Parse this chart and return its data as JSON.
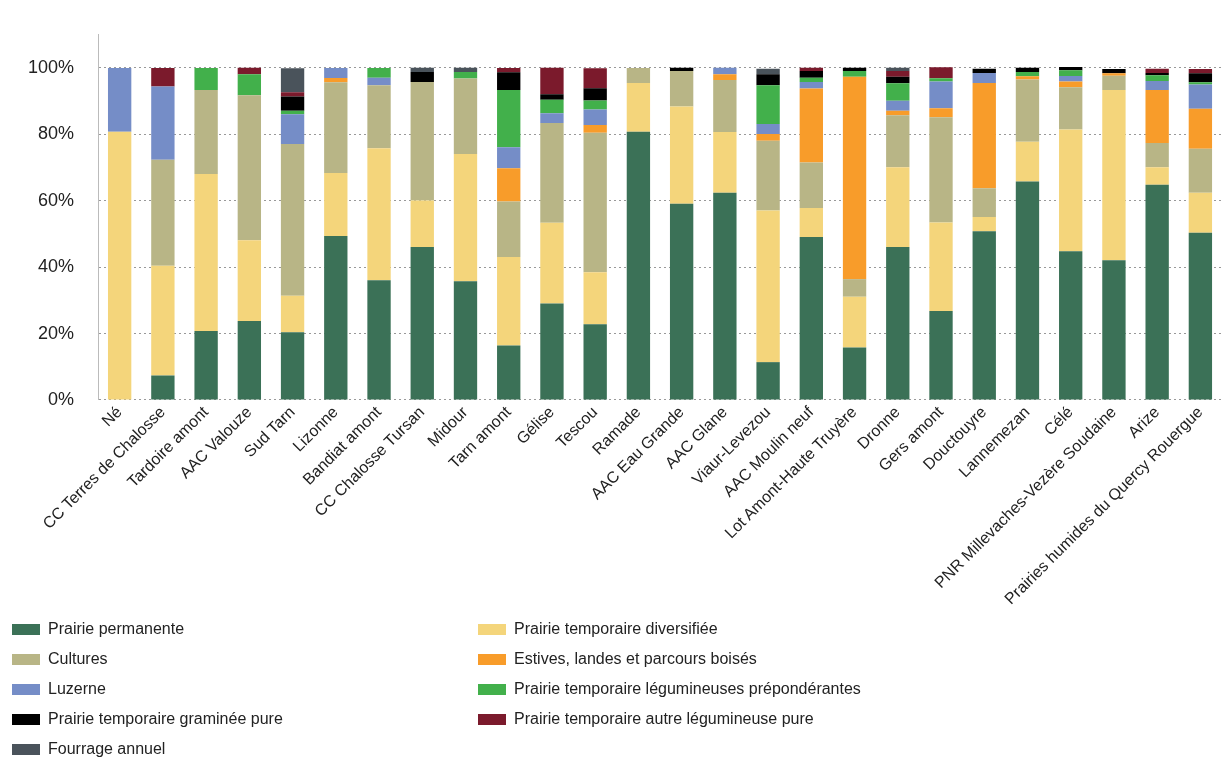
{
  "chart_data": {
    "type": "bar",
    "stacked": true,
    "legend": "bottom",
    "grid": "y",
    "ylim": [
      0,
      110
    ],
    "yticks": [
      {
        "value": 0,
        "label": "0%"
      },
      {
        "value": 20,
        "label": "20%"
      },
      {
        "value": 40,
        "label": "40%"
      },
      {
        "value": 60,
        "label": "60%"
      },
      {
        "value": 80,
        "label": "80%"
      },
      {
        "value": 100,
        "label": "100%"
      }
    ],
    "categories": [
      "Né",
      "CC Terres de Chalosse",
      "Tardoire amont",
      "AAC Valouze",
      "Sud Tarn",
      "Lizonne",
      "Bandiat amont",
      "CC Chalosse Tursan",
      "Midour",
      "Tarn amont",
      "Gélise",
      "Tescou",
      "Ramade",
      "AAC Eau Grande",
      "AAC Glane",
      "Viaur-Levezou",
      "AAC Moulin neuf",
      "Lot Amont-Haute Truyère",
      "Dronne",
      "Gers amont",
      "Douctouyre",
      "Lannemezan",
      "Célé",
      "PNR Millevaches-Vezère Soudaine",
      "Arize",
      "Prairies humides du Quercy Rouergue"
    ],
    "series": [
      {
        "name": "Prairie permanente",
        "color": "#3b7157",
        "values": [
          0,
          7.4,
          20.8,
          23.8,
          20.4,
          49.4,
          36.1,
          46.1,
          35.8,
          16.4,
          29.1,
          22.8,
          80.8,
          59.1,
          62.4,
          11.4,
          49.1,
          15.8,
          46.1,
          26.8,
          50.8,
          65.8,
          44.8,
          42.1,
          64.8,
          50.4
        ]
      },
      {
        "name": "Prairie temporaire diversifiée",
        "color": "#f4d57b",
        "values": [
          80.8,
          33.0,
          47.3,
          24.3,
          11.0,
          19.0,
          39.7,
          14.0,
          38.3,
          26.7,
          24.3,
          15.7,
          14.7,
          29.3,
          18.3,
          45.7,
          8.7,
          15.3,
          24.0,
          26.7,
          4.3,
          12.0,
          36.7,
          51.3,
          5.3,
          12.0
        ]
      },
      {
        "name": "Cultures",
        "color": "#b8b586",
        "values": [
          0,
          32.0,
          25.3,
          43.7,
          45.7,
          27.3,
          19.0,
          35.7,
          22.7,
          16.7,
          30.0,
          42.0,
          4.5,
          10.7,
          15.7,
          21.0,
          13.7,
          5.3,
          15.7,
          31.7,
          8.7,
          18.7,
          12.7,
          4.3,
          7.3,
          13.3
        ]
      },
      {
        "name": "Estives, landes et parcours boisés",
        "color": "#f89c2a",
        "values": [
          0,
          0,
          0,
          0,
          0,
          1.3,
          0,
          0,
          0,
          10.0,
          0,
          2.3,
          0,
          0,
          1.7,
          2.0,
          22.3,
          61.0,
          1.3,
          2.7,
          31.7,
          1.0,
          1.7,
          0.7,
          16.0,
          12.0
        ]
      },
      {
        "name": "Luzerne",
        "color": "#758dc7",
        "values": [
          19.2,
          22.0,
          0,
          0,
          9.0,
          3.0,
          2.3,
          0,
          0,
          6.3,
          3.0,
          4.7,
          0,
          0,
          2.0,
          3.0,
          2.0,
          0,
          3.0,
          8.0,
          3.0,
          0,
          1.7,
          0,
          2.7,
          7.3
        ]
      },
      {
        "name": "Prairie temporaire légumineuses prépondérantes",
        "color": "#42b04b",
        "values": [
          0,
          0,
          6.6,
          6.3,
          1.0,
          0,
          2.9,
          0,
          2.0,
          17.3,
          4.0,
          2.7,
          0,
          0,
          0,
          11.7,
          1.3,
          1.7,
          5.3,
          1.0,
          0,
          1.3,
          1.7,
          0,
          1.7,
          0.7
        ]
      },
      {
        "name": "Prairie temporaire graminée pure",
        "color": "#000000",
        "values": [
          0,
          0,
          0,
          0,
          4.3,
          0,
          0,
          3.0,
          0,
          5.3,
          1.7,
          3.7,
          0,
          1.0,
          0,
          3.3,
          2.0,
          1.0,
          2.0,
          0,
          1.3,
          1.3,
          1.0,
          1.3,
          0.7,
          2.7
        ]
      },
      {
        "name": "Prairie temporaire autre légumineuse pure",
        "color": "#7b1a2c",
        "values": [
          0,
          5.6,
          0,
          2.0,
          1.3,
          0,
          0,
          0,
          0,
          1.3,
          8.0,
          6.0,
          0,
          0,
          0,
          0,
          1.0,
          0,
          1.7,
          3.3,
          0,
          0,
          0,
          0,
          1.3,
          1.3
        ]
      },
      {
        "name": "Fourrage annuel",
        "color": "#4a535b",
        "values": [
          0,
          0,
          0,
          0,
          7.2,
          0,
          0,
          1.3,
          1.3,
          0,
          0,
          0,
          0,
          0,
          0,
          1.7,
          0,
          0,
          1.0,
          0,
          0,
          0,
          0,
          0,
          0,
          0
        ]
      }
    ]
  }
}
